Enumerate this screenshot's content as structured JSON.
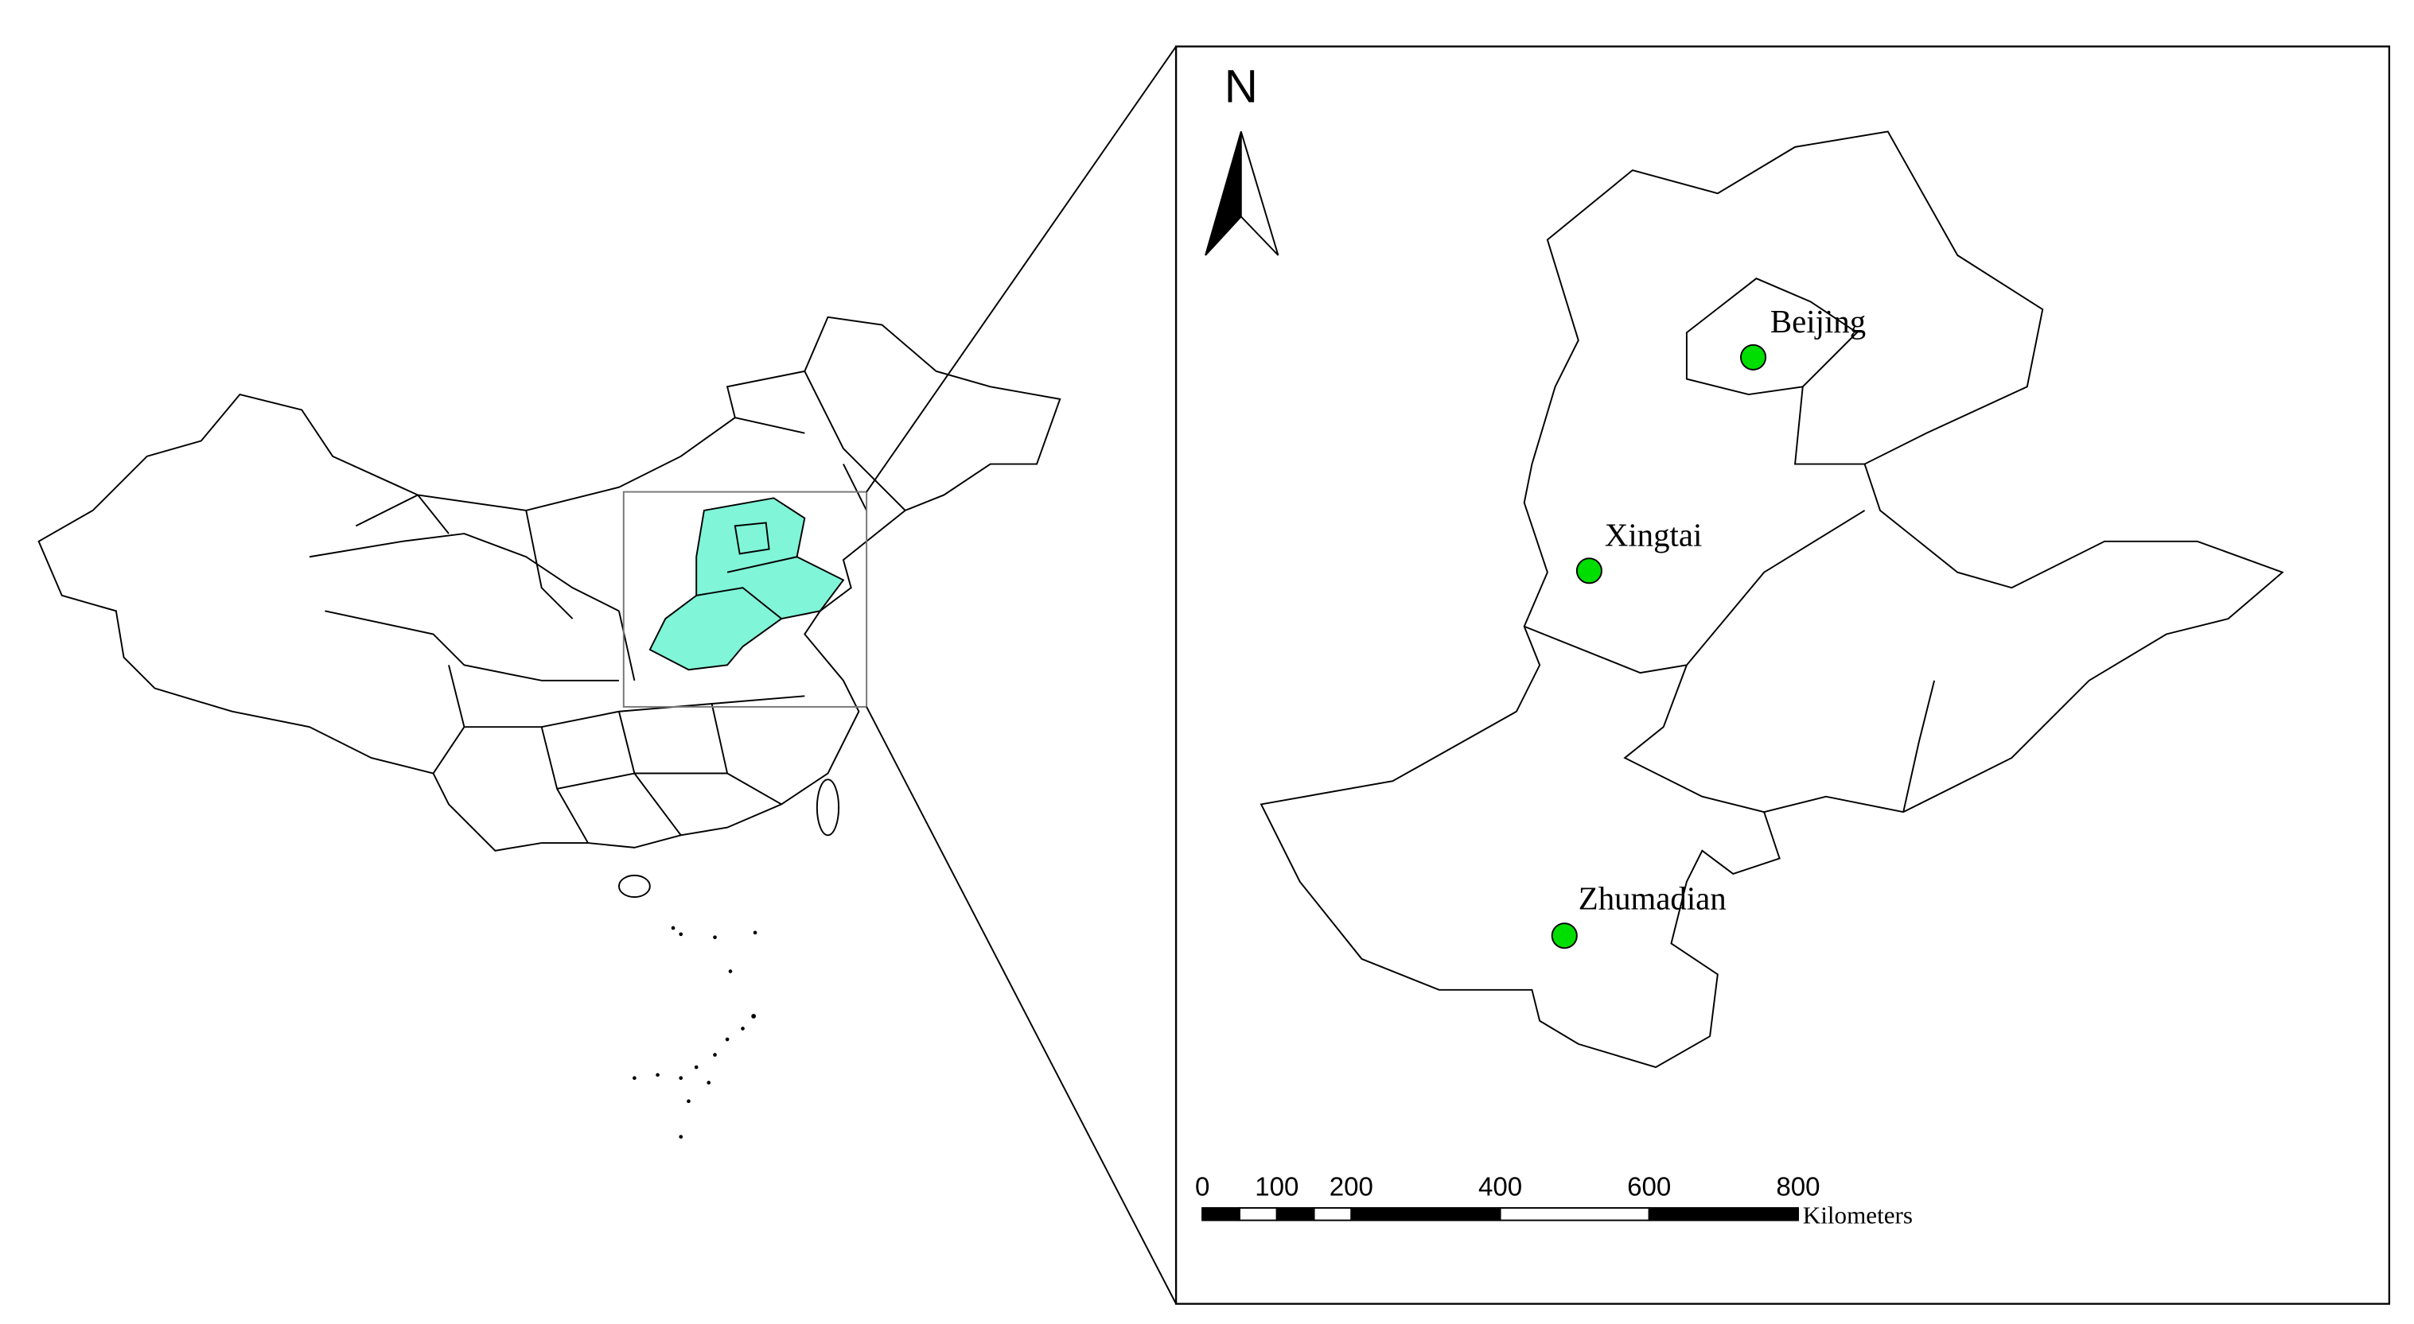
{
  "north_arrow": {
    "label": "N"
  },
  "places": [
    {
      "name": "Beijing"
    },
    {
      "name": "Xingtai"
    },
    {
      "name": "Zhumadian"
    }
  ],
  "scale_bar": {
    "ticks": [
      0,
      100,
      200,
      400,
      600,
      800
    ],
    "unit": "Kilometers"
  }
}
